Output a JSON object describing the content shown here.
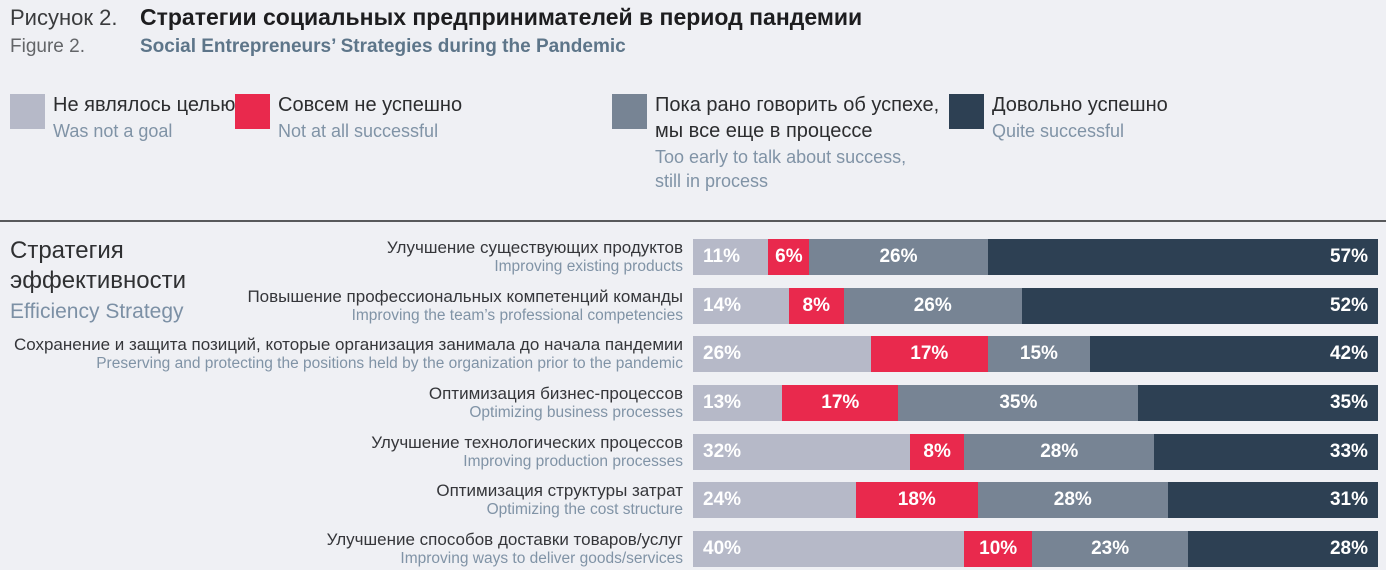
{
  "header": {
    "figure_label_ru": "Рисунок 2.",
    "title_ru": "Стратегии социальных предпринимателей в период пандемии",
    "figure_label_en": "Figure 2.",
    "title_en": "Social Entrepreneurs’ Strategies during the Pandemic"
  },
  "legend": [
    {
      "color": "#b6b9c8",
      "label_ru": "Не являлось целью",
      "label_en": "Was not a goal"
    },
    {
      "color": "#e9294d",
      "label_ru": "Совсем не успешно",
      "label_en": "Not at all successful"
    },
    {
      "color": "#778494",
      "label_ru": "Пока рано говорить об успехе,\nмы все еще в процессе",
      "label_en": "Too early to talk about success,\nstill in process"
    },
    {
      "color": "#2d4053",
      "label_ru": "Довольно успешно",
      "label_en": "Quite successful"
    }
  ],
  "section": {
    "title_ru": "Стратегия эффективности",
    "title_en": "Efficiency Strategy"
  },
  "chart_data": {
    "type": "bar",
    "orientation": "horizontal",
    "stacked": true,
    "unit": "%",
    "colors": [
      "#b6b9c8",
      "#e9294d",
      "#778494",
      "#2d4053"
    ],
    "series_names": [
      "Не являлось целью / Was not a goal",
      "Совсем не успешно / Not at all successful",
      "Пока рано говорить об успехе, мы все еще в процессе / Too early to talk about success, still in process",
      "Довольно успешно / Quite successful"
    ],
    "rows": [
      {
        "label_ru": "Улучшение существующих продуктов",
        "label_en": "Improving existing products",
        "values": [
          11,
          6,
          26,
          57
        ]
      },
      {
        "label_ru": "Повышение профессиональных компетенций команды",
        "label_en": "Improving the team’s professional competencies",
        "values": [
          14,
          8,
          26,
          52
        ]
      },
      {
        "label_ru": "Сохранение и защита позиций, которые организация занимала до начала пандемии",
        "label_en": "Preserving and protecting the positions held by the organization prior to the pandemic",
        "values": [
          26,
          17,
          15,
          42
        ]
      },
      {
        "label_ru": "Оптимизация бизнес-процессов",
        "label_en": "Optimizing business processes",
        "values": [
          13,
          17,
          35,
          35
        ]
      },
      {
        "label_ru": "Улучшение технологических процессов",
        "label_en": "Improving production processes",
        "values": [
          32,
          8,
          28,
          33
        ]
      },
      {
        "label_ru": "Оптимизация структуры затрат",
        "label_en": "Optimizing the cost structure",
        "values": [
          24,
          18,
          28,
          31
        ]
      },
      {
        "label_ru": "Улучшение способов доставки товаров/услуг",
        "label_en": "Improving ways to deliver goods/services",
        "values": [
          40,
          10,
          23,
          28
        ]
      }
    ]
  }
}
